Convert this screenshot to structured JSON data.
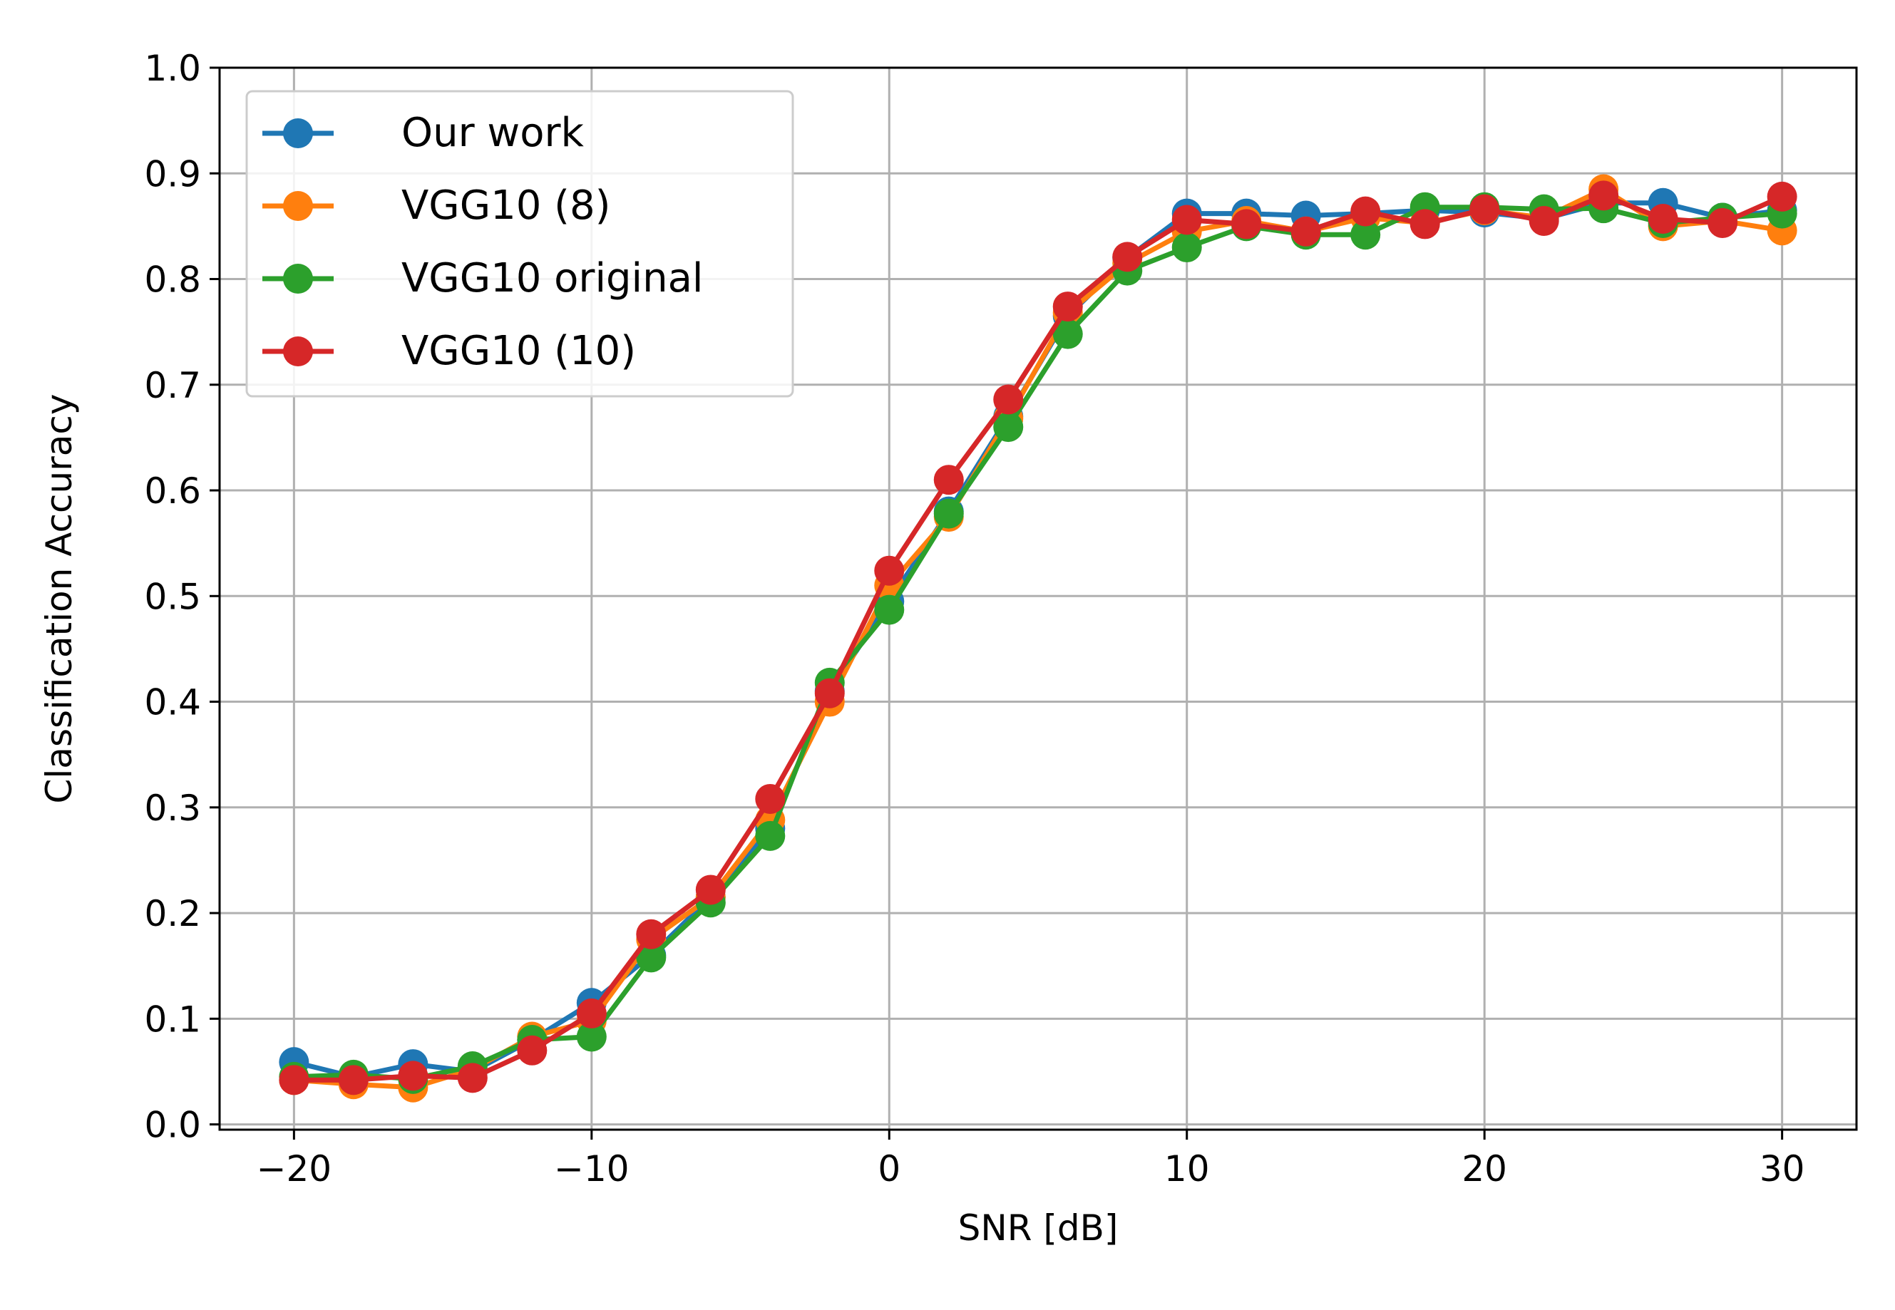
{
  "chart_data": {
    "type": "line",
    "title": "",
    "xlabel": "SNR [dB]",
    "ylabel": "Classification Accuracy",
    "xlim": [
      -22.5,
      32.5
    ],
    "ylim": [
      -0.005,
      1.0
    ],
    "grid": true,
    "legend_position": "top-left",
    "xticks": [
      -20,
      -10,
      0,
      10,
      20,
      30
    ],
    "xtick_labels": [
      "−20",
      "−10",
      "0",
      "10",
      "20",
      "30"
    ],
    "yticks": [
      0.0,
      0.1,
      0.2,
      0.3,
      0.4,
      0.5,
      0.6,
      0.7,
      0.8,
      0.9,
      1.0
    ],
    "ytick_labels": [
      "0.0",
      "0.1",
      "0.2",
      "0.3",
      "0.4",
      "0.5",
      "0.6",
      "0.7",
      "0.8",
      "0.9",
      "1.0"
    ],
    "x": [
      -20,
      -18,
      -16,
      -14,
      -12,
      -10,
      -8,
      -6,
      -4,
      -2,
      0,
      2,
      4,
      6,
      8,
      10,
      12,
      14,
      16,
      18,
      20,
      22,
      24,
      26,
      28,
      30
    ],
    "series": [
      {
        "name": "Our work",
        "color": "#1f77b4",
        "values": [
          0.059,
          0.045,
          0.057,
          0.05,
          0.08,
          0.115,
          0.16,
          0.215,
          0.28,
          0.41,
          0.495,
          0.58,
          0.67,
          0.765,
          0.82,
          0.862,
          0.862,
          0.86,
          0.862,
          0.865,
          0.863,
          0.857,
          0.872,
          0.872,
          0.858,
          0.865
        ]
      },
      {
        "name": "VGG10 (8)",
        "color": "#ff7f0e",
        "values": [
          0.042,
          0.038,
          0.035,
          0.052,
          0.083,
          0.098,
          0.175,
          0.215,
          0.288,
          0.4,
          0.51,
          0.575,
          0.668,
          0.768,
          0.815,
          0.845,
          0.855,
          0.845,
          0.858,
          0.853,
          0.865,
          0.858,
          0.885,
          0.85,
          0.855,
          0.846
        ]
      },
      {
        "name": "VGG10 original",
        "color": "#2ca02c",
        "values": [
          0.045,
          0.047,
          0.043,
          0.055,
          0.08,
          0.083,
          0.158,
          0.21,
          0.273,
          0.418,
          0.487,
          0.578,
          0.66,
          0.748,
          0.808,
          0.83,
          0.85,
          0.842,
          0.842,
          0.868,
          0.868,
          0.866,
          0.867,
          0.853,
          0.858,
          0.862
        ]
      },
      {
        "name": "VGG10 (10)",
        "color": "#d62728",
        "values": [
          0.042,
          0.042,
          0.046,
          0.044,
          0.07,
          0.105,
          0.18,
          0.222,
          0.308,
          0.408,
          0.524,
          0.61,
          0.686,
          0.774,
          0.821,
          0.856,
          0.852,
          0.845,
          0.864,
          0.852,
          0.866,
          0.855,
          0.879,
          0.857,
          0.853,
          0.878
        ]
      }
    ]
  }
}
